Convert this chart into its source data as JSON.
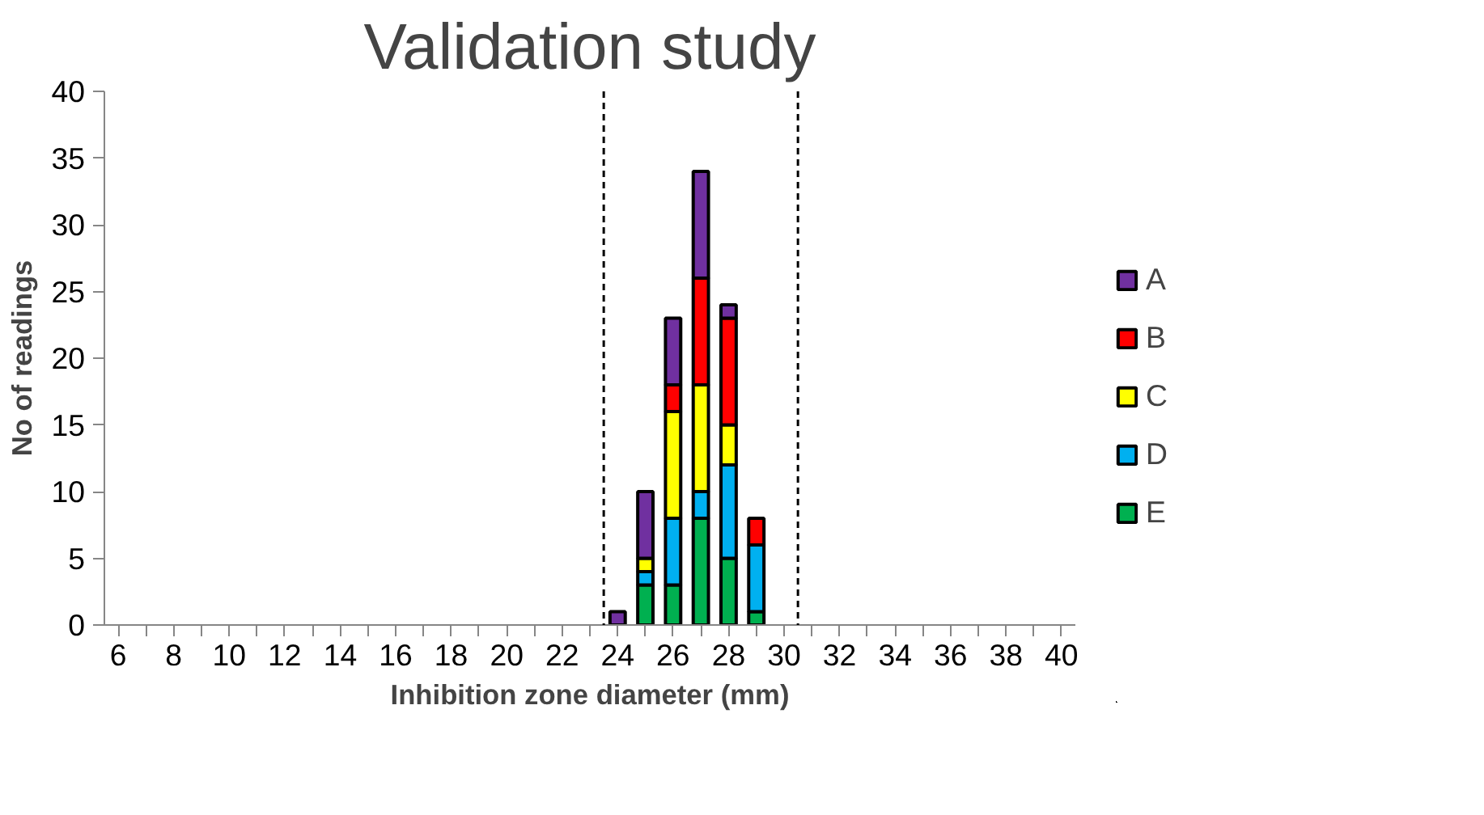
{
  "chart_data": {
    "type": "bar",
    "stacked": true,
    "title": "Validation study",
    "xlabel": "Inhibition zone diameter (mm)",
    "ylabel": "No of readings",
    "x": [
      6,
      7,
      8,
      9,
      10,
      11,
      12,
      13,
      14,
      15,
      16,
      17,
      18,
      19,
      20,
      21,
      22,
      23,
      24,
      25,
      26,
      27,
      28,
      29,
      30,
      31,
      32,
      33,
      34,
      35,
      36,
      37,
      38,
      39,
      40
    ],
    "series": [
      {
        "name": "E",
        "color": "#00b050",
        "values": [
          0,
          0,
          0,
          0,
          0,
          0,
          0,
          0,
          0,
          0,
          0,
          0,
          0,
          0,
          0,
          0,
          0,
          0,
          0,
          3,
          3,
          8,
          5,
          1,
          0,
          0,
          0,
          0,
          0,
          0,
          0,
          0,
          0,
          0,
          0
        ]
      },
      {
        "name": "D",
        "color": "#00b0f0",
        "values": [
          0,
          0,
          0,
          0,
          0,
          0,
          0,
          0,
          0,
          0,
          0,
          0,
          0,
          0,
          0,
          0,
          0,
          0,
          0,
          1,
          5,
          2,
          7,
          5,
          0,
          0,
          0,
          0,
          0,
          0,
          0,
          0,
          0,
          0,
          0
        ]
      },
      {
        "name": "C",
        "color": "#ffff00",
        "values": [
          0,
          0,
          0,
          0,
          0,
          0,
          0,
          0,
          0,
          0,
          0,
          0,
          0,
          0,
          0,
          0,
          0,
          0,
          0,
          1,
          8,
          8,
          3,
          0,
          0,
          0,
          0,
          0,
          0,
          0,
          0,
          0,
          0,
          0,
          0
        ]
      },
      {
        "name": "B",
        "color": "#ff0000",
        "values": [
          0,
          0,
          0,
          0,
          0,
          0,
          0,
          0,
          0,
          0,
          0,
          0,
          0,
          0,
          0,
          0,
          0,
          0,
          0,
          0,
          2,
          8,
          8,
          2,
          0,
          0,
          0,
          0,
          0,
          0,
          0,
          0,
          0,
          0,
          0
        ]
      },
      {
        "name": "A",
        "color": "#7030a0",
        "values": [
          0,
          0,
          0,
          0,
          0,
          0,
          0,
          0,
          0,
          0,
          0,
          0,
          0,
          0,
          0,
          0,
          0,
          0,
          1,
          5,
          5,
          8,
          1,
          0,
          0,
          0,
          0,
          0,
          0,
          0,
          0,
          0,
          0,
          0,
          0
        ]
      }
    ],
    "xlim": [
      5.5,
      40.5
    ],
    "xticks": [
      6,
      {
        "value": 7,
        "label": null
      },
      8,
      {
        "value": 9,
        "label": null
      },
      10,
      {
        "value": 11,
        "label": null
      },
      12,
      {
        "value": 13,
        "label": null
      },
      14,
      {
        "value": 15,
        "label": null
      },
      16,
      {
        "value": 17,
        "label": null
      },
      18,
      {
        "value": 19,
        "label": null
      },
      20,
      {
        "value": 21,
        "label": null
      },
      22,
      {
        "value": 23,
        "label": null
      },
      24,
      {
        "value": 25,
        "label": null
      },
      26,
      {
        "value": 27,
        "label": null
      },
      28,
      {
        "value": 29,
        "label": null
      },
      30,
      {
        "value": 31,
        "label": null
      },
      32,
      {
        "value": 33,
        "label": null
      },
      34,
      {
        "value": 35,
        "label": null
      },
      36,
      {
        "value": 37,
        "label": null
      },
      38,
      {
        "value": 39,
        "label": null
      },
      40
    ],
    "ylim": [
      0,
      40
    ],
    "yticks": [
      0,
      5,
      10,
      15,
      20,
      25,
      30,
      35,
      40
    ],
    "ref_lines": [
      {
        "axis": "x",
        "value": 23.5,
        "color": "#000000",
        "line_style": "dashed"
      },
      {
        "axis": "x",
        "value": 30.5,
        "color": "#000000",
        "line_style": "dashed"
      }
    ],
    "grid": false,
    "legend": "right"
  }
}
